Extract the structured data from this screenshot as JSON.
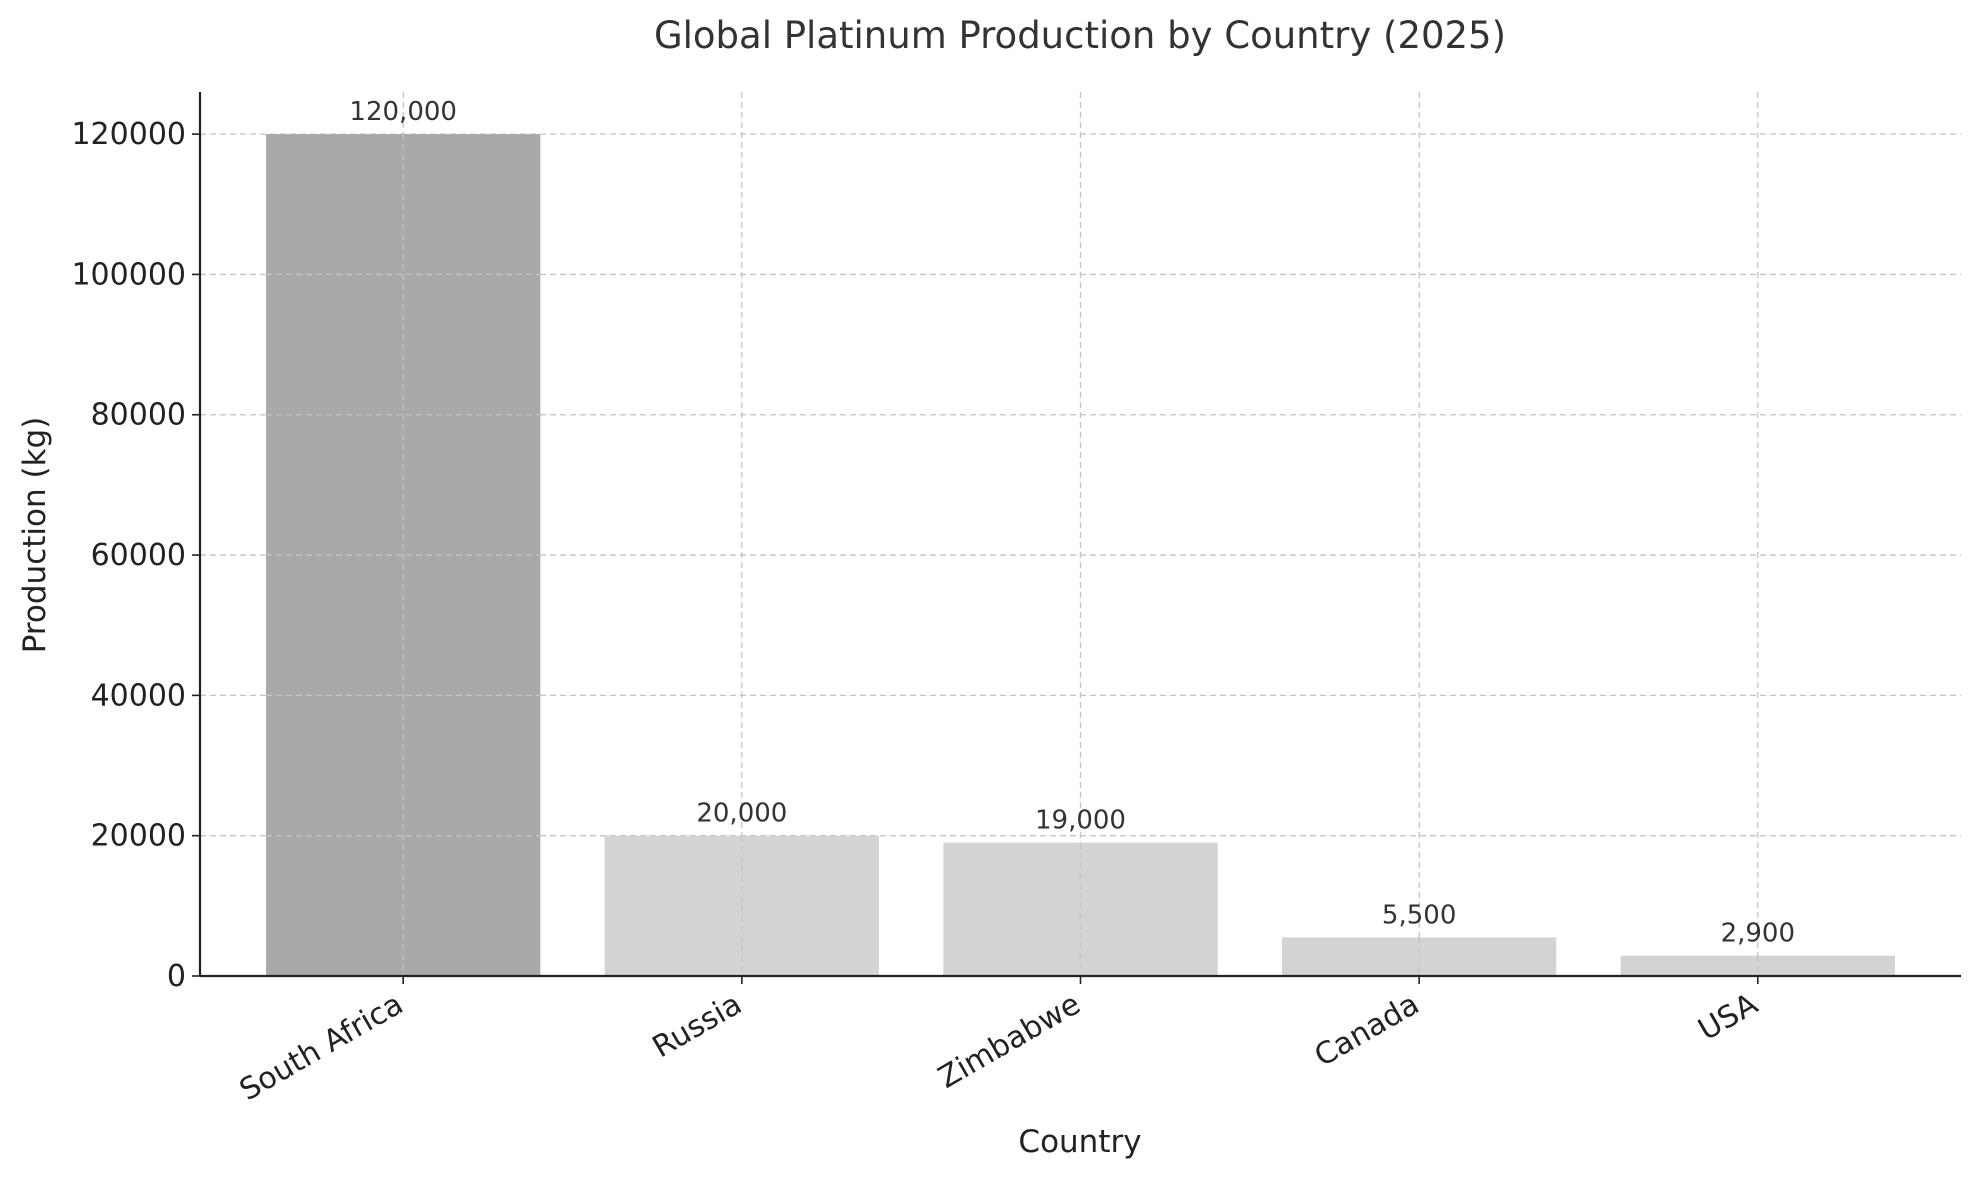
{
  "chart_data": {
    "type": "bar",
    "title": "Global Platinum Production by Country (2025)",
    "xlabel": "Country",
    "ylabel": "Production (kg)",
    "categories": [
      "South Africa",
      "Russia",
      "Zimbabwe",
      "Canada",
      "USA"
    ],
    "values": [
      120000,
      20000,
      19000,
      5500,
      2900
    ],
    "value_labels": [
      "120,000",
      "20,000",
      "19,000",
      "5,500",
      "2,900"
    ],
    "ylim": [
      0,
      126000
    ],
    "yticks": [
      0,
      20000,
      40000,
      60000,
      80000,
      100000,
      120000
    ],
    "ytick_labels": [
      "0",
      "20000",
      "40000",
      "60000",
      "80000",
      "100000",
      "120000"
    ],
    "grid": true,
    "legend": "none",
    "colors": {
      "highlight": "#a9a9a9",
      "default": "#d3d3d3"
    },
    "highlight_index": 0
  }
}
